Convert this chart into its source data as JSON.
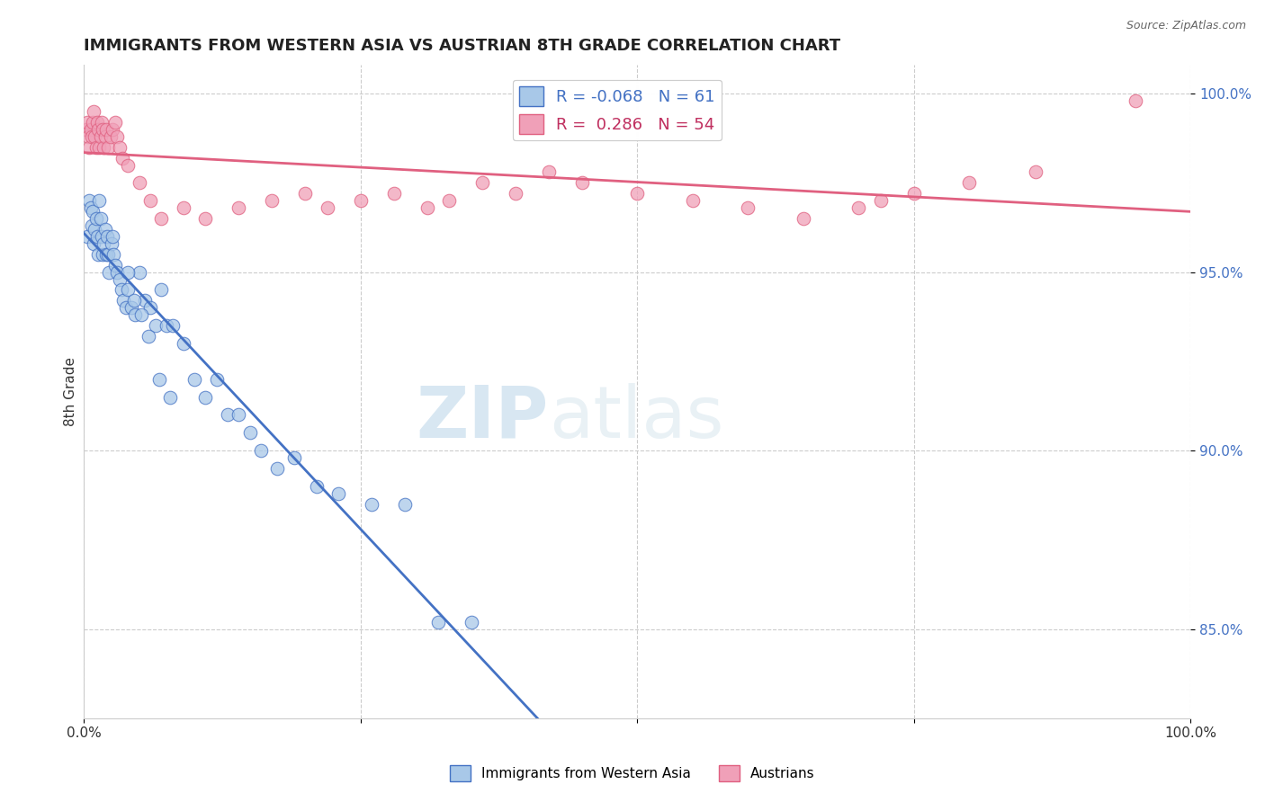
{
  "title": "IMMIGRANTS FROM WESTERN ASIA VS AUSTRIAN 8TH GRADE CORRELATION CHART",
  "source_text": "Source: ZipAtlas.com",
  "ylabel": "8th Grade",
  "xlim": [
    0.0,
    1.0
  ],
  "ylim": [
    0.825,
    1.008
  ],
  "yticks": [
    0.85,
    0.9,
    0.95,
    1.0
  ],
  "ytick_labels": [
    "85.0%",
    "90.0%",
    "95.0%",
    "100.0%"
  ],
  "blue_R": -0.068,
  "blue_N": 61,
  "pink_R": 0.286,
  "pink_N": 54,
  "blue_color": "#a8c8e8",
  "pink_color": "#f0a0b8",
  "blue_line_color": "#4472c4",
  "pink_line_color": "#e06080",
  "watermark_zip": "ZIP",
  "watermark_atlas": "atlas",
  "legend_label_blue": "Immigrants from Western Asia",
  "legend_label_pink": "Austrians",
  "blue_x": [
    0.003,
    0.005,
    0.006,
    0.007,
    0.008,
    0.009,
    0.01,
    0.011,
    0.012,
    0.013,
    0.014,
    0.015,
    0.016,
    0.017,
    0.018,
    0.019,
    0.02,
    0.021,
    0.022,
    0.023,
    0.025,
    0.026,
    0.027,
    0.028,
    0.03,
    0.032,
    0.034,
    0.036,
    0.038,
    0.04,
    0.043,
    0.046,
    0.05,
    0.055,
    0.06,
    0.065,
    0.07,
    0.075,
    0.08,
    0.09,
    0.1,
    0.11,
    0.12,
    0.13,
    0.14,
    0.15,
    0.16,
    0.175,
    0.19,
    0.21,
    0.23,
    0.26,
    0.29,
    0.32,
    0.35,
    0.04,
    0.045,
    0.052,
    0.058,
    0.068,
    0.078
  ],
  "blue_y": [
    0.96,
    0.97,
    0.968,
    0.963,
    0.967,
    0.958,
    0.962,
    0.965,
    0.96,
    0.955,
    0.97,
    0.965,
    0.96,
    0.955,
    0.958,
    0.962,
    0.955,
    0.96,
    0.955,
    0.95,
    0.958,
    0.96,
    0.955,
    0.952,
    0.95,
    0.948,
    0.945,
    0.942,
    0.94,
    0.945,
    0.94,
    0.938,
    0.95,
    0.942,
    0.94,
    0.935,
    0.945,
    0.935,
    0.935,
    0.93,
    0.92,
    0.915,
    0.92,
    0.91,
    0.91,
    0.905,
    0.9,
    0.895,
    0.898,
    0.89,
    0.888,
    0.885,
    0.885,
    0.852,
    0.852,
    0.95,
    0.942,
    0.938,
    0.932,
    0.92,
    0.915
  ],
  "pink_x": [
    0.002,
    0.003,
    0.004,
    0.005,
    0.006,
    0.007,
    0.008,
    0.009,
    0.01,
    0.011,
    0.012,
    0.013,
    0.014,
    0.015,
    0.016,
    0.017,
    0.018,
    0.019,
    0.02,
    0.022,
    0.024,
    0.026,
    0.028,
    0.03,
    0.032,
    0.035,
    0.04,
    0.05,
    0.06,
    0.07,
    0.09,
    0.11,
    0.14,
    0.17,
    0.2,
    0.22,
    0.25,
    0.28,
    0.31,
    0.33,
    0.36,
    0.39,
    0.42,
    0.45,
    0.5,
    0.55,
    0.6,
    0.65,
    0.7,
    0.72,
    0.75,
    0.8,
    0.86,
    0.95
  ],
  "pink_y": [
    0.99,
    0.992,
    0.988,
    0.985,
    0.99,
    0.988,
    0.992,
    0.995,
    0.988,
    0.985,
    0.992,
    0.99,
    0.985,
    0.988,
    0.992,
    0.99,
    0.985,
    0.988,
    0.99,
    0.985,
    0.988,
    0.99,
    0.992,
    0.988,
    0.985,
    0.982,
    0.98,
    0.975,
    0.97,
    0.965,
    0.968,
    0.965,
    0.968,
    0.97,
    0.972,
    0.968,
    0.97,
    0.972,
    0.968,
    0.97,
    0.975,
    0.972,
    0.978,
    0.975,
    0.972,
    0.97,
    0.968,
    0.965,
    0.968,
    0.97,
    0.972,
    0.975,
    0.978,
    0.998
  ]
}
